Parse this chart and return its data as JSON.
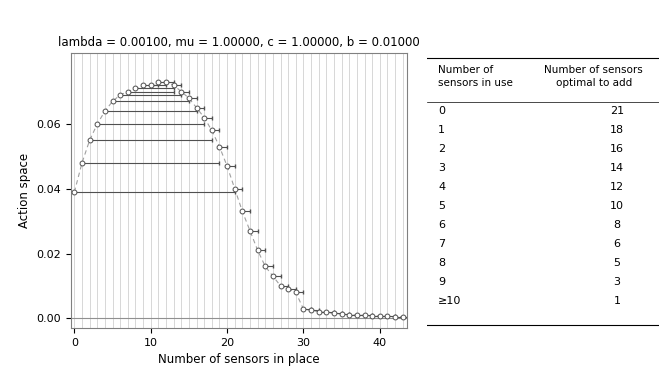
{
  "title": "lambda = 0.00100, mu = 1.00000, c = 1.00000, b = 0.01000",
  "xlabel": "Number of sensors in place",
  "ylabel": "Action space",
  "y_values": [
    0.039,
    0.048,
    0.055,
    0.06,
    0.064,
    0.067,
    0.069,
    0.07,
    0.071,
    0.072,
    0.072,
    0.073,
    0.073,
    0.072,
    0.07,
    0.068,
    0.065,
    0.062,
    0.058,
    0.053,
    0.047,
    0.04,
    0.033,
    0.027,
    0.021,
    0.016,
    0.013,
    0.01,
    0.009,
    0.008,
    0.0028,
    0.0025,
    0.002,
    0.0018,
    0.0015,
    0.0013,
    0.0011,
    0.001,
    0.0009,
    0.0008,
    0.0007,
    0.0006,
    0.0005,
    0.0004
  ],
  "optimal_add": [
    21,
    18,
    16,
    14,
    12,
    10,
    8,
    6,
    5,
    3,
    1,
    1,
    1,
    1,
    1,
    1,
    1,
    1,
    1,
    1,
    1,
    1,
    1,
    1,
    1,
    1,
    1,
    1,
    1,
    1,
    1,
    1,
    1,
    1,
    1,
    1,
    1,
    1,
    1,
    1,
    1,
    1,
    1,
    1
  ],
  "table_sensors_in_use": [
    "0",
    "1",
    "2",
    "3",
    "4",
    "5",
    "6",
    "7",
    "8",
    "9",
    "≥10"
  ],
  "table_optimal_to_add": [
    "21",
    "18",
    "16",
    "14",
    "12",
    "10",
    "8",
    "6",
    "5",
    "3",
    "1"
  ],
  "vline_color": "#c8c8c8",
  "seg_color": "#505050",
  "dashed_color": "#a0a0a0",
  "yticks": [
    0,
    0.02,
    0.04,
    0.06
  ],
  "xticks": [
    0,
    10,
    20,
    30,
    40
  ],
  "ylim": [
    -0.003,
    0.082
  ],
  "xlim": [
    -0.5,
    43.5
  ],
  "max_n": 43
}
